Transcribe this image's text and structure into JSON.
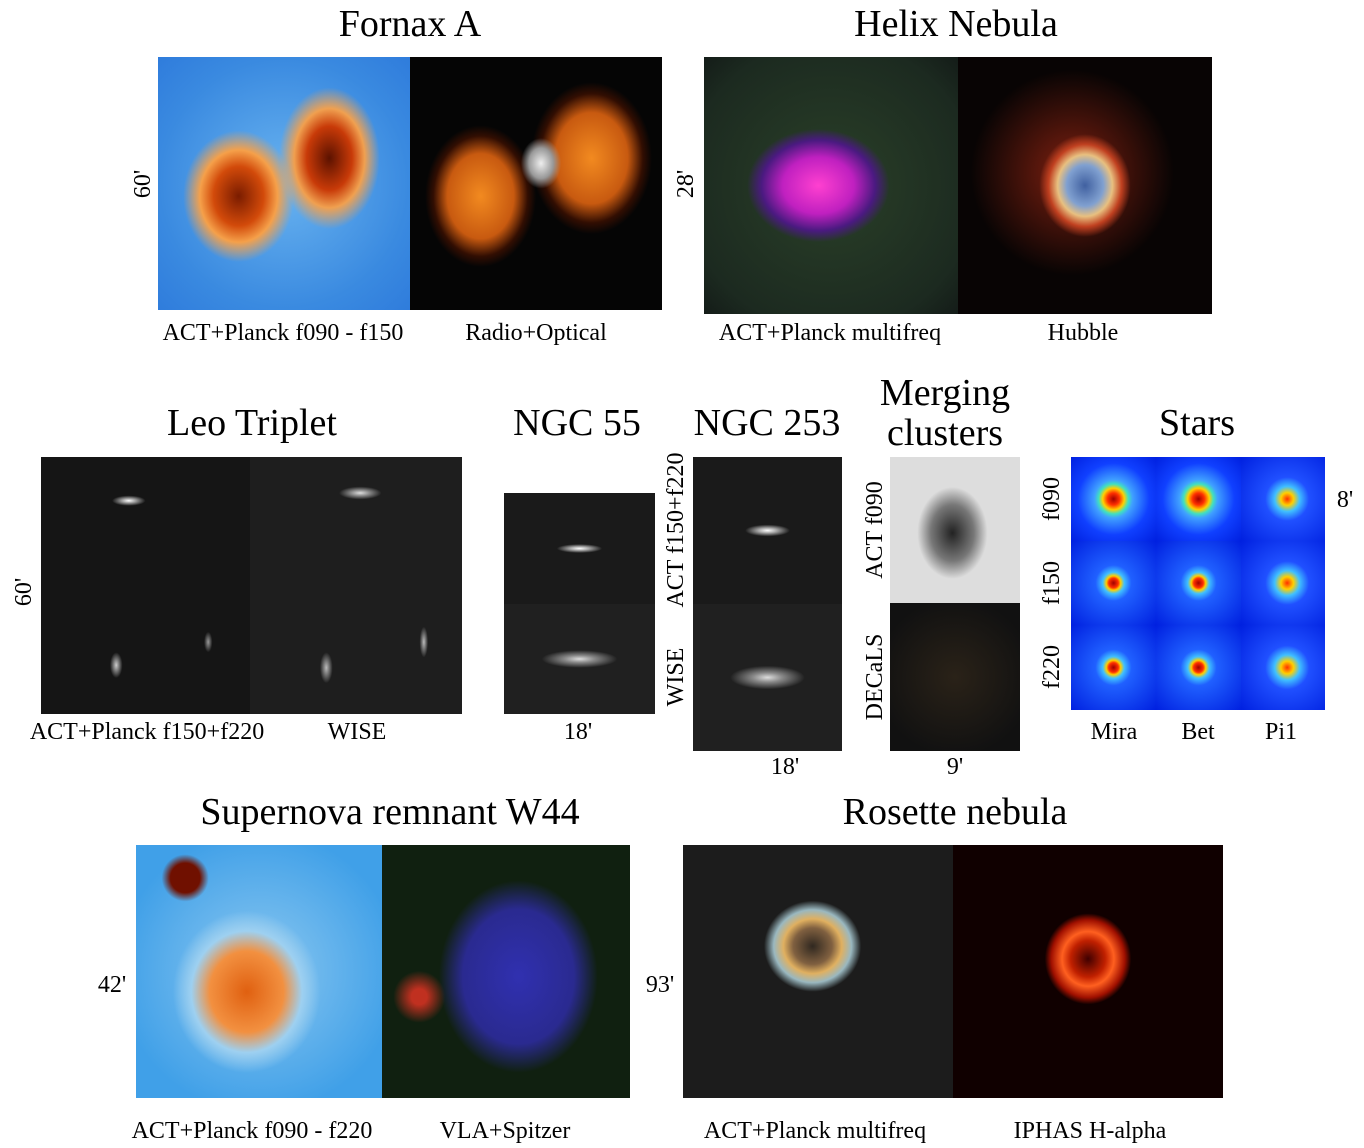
{
  "figure": {
    "panels": [
      {
        "title": "Fornax A",
        "scale": "60'",
        "captions": [
          "ACT+Planck f090 - f150",
          "Radio+Optical"
        ]
      },
      {
        "title": "Helix Nebula",
        "scale": "28'",
        "captions": [
          "ACT+Planck multifreq",
          "Hubble"
        ]
      },
      {
        "title": "Leo Triplet",
        "scale": "60'",
        "captions": [
          "ACT+Planck f150+f220",
          "WISE"
        ]
      },
      {
        "title": "NGC 55",
        "scale": "18'"
      },
      {
        "title": "NGC 253",
        "scale": "18'",
        "row_labels": [
          "ACT f150+f220",
          "WISE"
        ]
      },
      {
        "title": "Merging clusters",
        "scale": "9'",
        "row_labels": [
          "ACT f090",
          "DECaLS"
        ]
      },
      {
        "title": "Stars",
        "scale": "8'",
        "row_labels": [
          "f090",
          "f150",
          "f220"
        ],
        "column_labels": [
          "Mira",
          "Bet",
          "Pi1"
        ]
      },
      {
        "title": "Supernova remnant W44",
        "scale": "42'",
        "captions": [
          "ACT+Planck f090 - f220",
          "VLA+Spitzer"
        ]
      },
      {
        "title": "Rosette nebula",
        "scale": "93'",
        "captions": [
          "ACT+Planck multifreq",
          "IPHAS H-alpha"
        ]
      }
    ]
  }
}
